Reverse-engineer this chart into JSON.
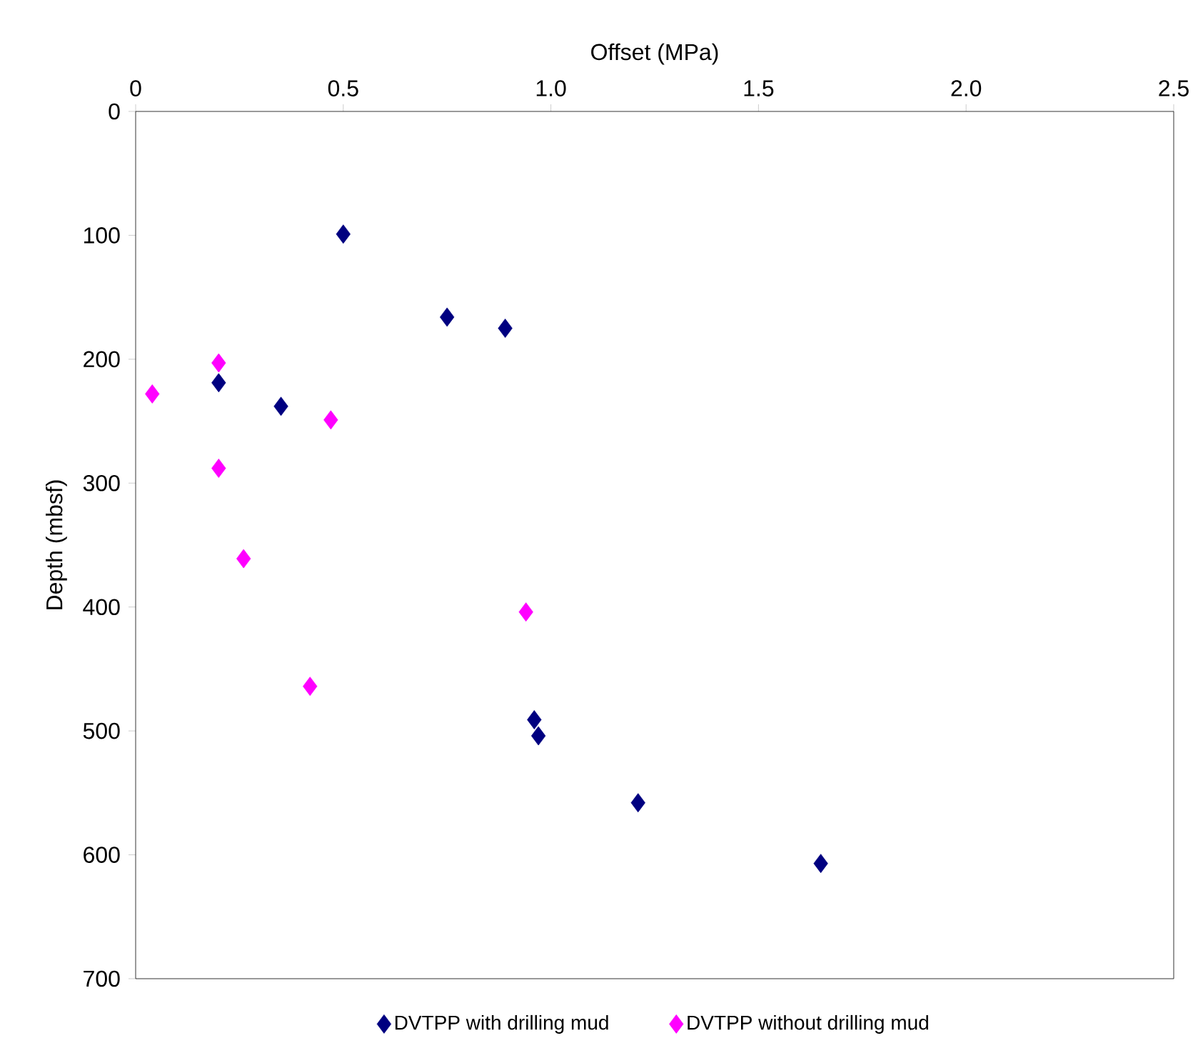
{
  "chart_data": {
    "type": "scatter",
    "xlabel": "Offset (MPa)",
    "ylabel": "Depth (mbsf)",
    "xlim": [
      0,
      2.5
    ],
    "xticks": [
      0,
      0.5,
      {
        "value": 1,
        "label": "1.0"
      },
      1.5,
      {
        "value": 2,
        "label": "2.0"
      },
      2.5
    ],
    "ylim": [
      700,
      0
    ],
    "yticks": [
      0,
      100,
      200,
      300,
      400,
      500,
      600,
      700
    ],
    "marker": "diamond",
    "legend": "bottom",
    "grid": false,
    "series": [
      {
        "name": "DVTPP with drilling mud",
        "color": "#000080",
        "x": [
          0.5,
          0.75,
          0.89,
          0.2,
          0.35,
          0.96,
          0.97,
          1.21,
          1.65
        ],
        "values": [
          99,
          166,
          175,
          219,
          238,
          491,
          504,
          558,
          607
        ]
      },
      {
        "name": "DVTPP without drilling mud",
        "color": "#ff00ff",
        "x": [
          0.2,
          0.04,
          0.47,
          0.2,
          0.26,
          0.94,
          0.42
        ],
        "values": [
          203,
          228,
          249,
          288,
          361,
          404,
          464
        ]
      }
    ]
  }
}
